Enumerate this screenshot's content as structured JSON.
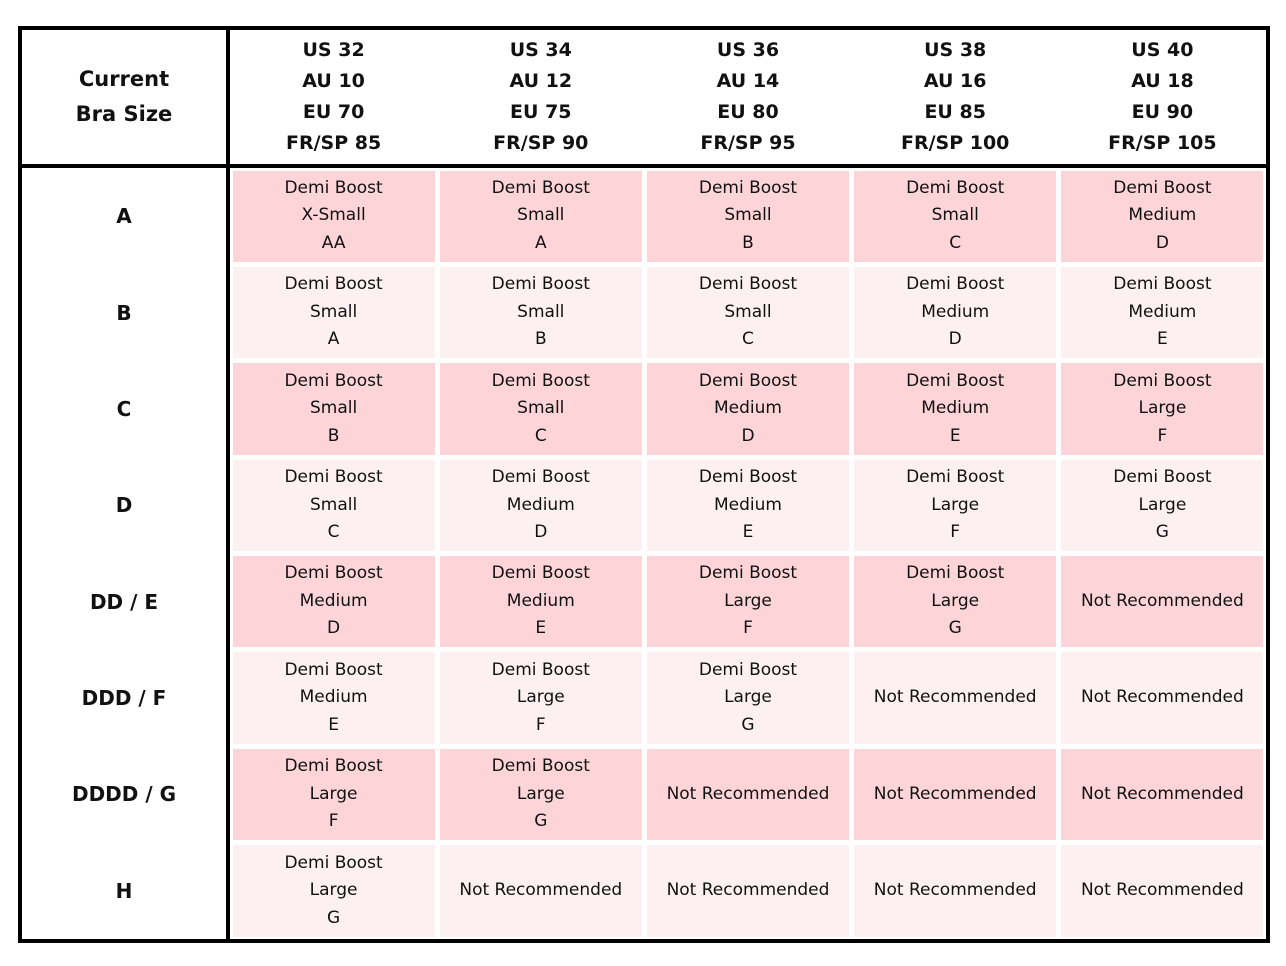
{
  "corner": [
    "Current",
    "Bra Size"
  ],
  "columns": [
    [
      "US 32",
      "AU 10",
      "EU 70",
      "FR/SP 85"
    ],
    [
      "US 34",
      "AU 12",
      "EU 75",
      "FR/SP 90"
    ],
    [
      "US 36",
      "AU 14",
      "EU 80",
      "FR/SP 95"
    ],
    [
      "US 38",
      "AU 16",
      "EU 85",
      "FR/SP 100"
    ],
    [
      "US 40",
      "AU 18",
      "EU 90",
      "FR/SP 105"
    ]
  ],
  "rows": [
    {
      "label": "A",
      "cells": [
        [
          "Demi Boost",
          "X-Small",
          "AA"
        ],
        [
          "Demi Boost",
          "Small",
          "A"
        ],
        [
          "Demi Boost",
          "Small",
          "B"
        ],
        [
          "Demi Boost",
          "Small",
          "C"
        ],
        [
          "Demi Boost",
          "Medium",
          "D"
        ]
      ]
    },
    {
      "label": "B",
      "cells": [
        [
          "Demi Boost",
          "Small",
          "A"
        ],
        [
          "Demi Boost",
          "Small",
          "B"
        ],
        [
          "Demi Boost",
          "Small",
          "C"
        ],
        [
          "Demi Boost",
          "Medium",
          "D"
        ],
        [
          "Demi Boost",
          "Medium",
          "E"
        ]
      ]
    },
    {
      "label": "C",
      "cells": [
        [
          "Demi Boost",
          "Small",
          "B"
        ],
        [
          "Demi Boost",
          "Small",
          "C"
        ],
        [
          "Demi Boost",
          "Medium",
          "D"
        ],
        [
          "Demi Boost",
          "Medium",
          "E"
        ],
        [
          "Demi Boost",
          "Large",
          "F"
        ]
      ]
    },
    {
      "label": "D",
      "cells": [
        [
          "Demi Boost",
          "Small",
          "C"
        ],
        [
          "Demi Boost",
          "Medium",
          "D"
        ],
        [
          "Demi Boost",
          "Medium",
          "E"
        ],
        [
          "Demi Boost",
          "Large",
          "F"
        ],
        [
          "Demi Boost",
          "Large",
          "G"
        ]
      ]
    },
    {
      "label": "DD / E",
      "cells": [
        [
          "Demi Boost",
          "Medium",
          "D"
        ],
        [
          "Demi Boost",
          "Medium",
          "E"
        ],
        [
          "Demi Boost",
          "Large",
          "F"
        ],
        [
          "Demi Boost",
          "Large",
          "G"
        ],
        [
          "Not Recommended"
        ]
      ]
    },
    {
      "label": "DDD / F",
      "cells": [
        [
          "Demi Boost",
          "Medium",
          "E"
        ],
        [
          "Demi Boost",
          "Large",
          "F"
        ],
        [
          "Demi Boost",
          "Large",
          "G"
        ],
        [
          "Not Recommended"
        ],
        [
          "Not Recommended"
        ]
      ]
    },
    {
      "label": "DDDD / G",
      "cells": [
        [
          "Demi Boost",
          "Large",
          "F"
        ],
        [
          "Demi Boost",
          "Large",
          "G"
        ],
        [
          "Not Recommended"
        ],
        [
          "Not Recommended"
        ],
        [
          "Not Recommended"
        ]
      ]
    },
    {
      "label": "H",
      "cells": [
        [
          "Demi Boost",
          "Large",
          "G"
        ],
        [
          "Not Recommended"
        ],
        [
          "Not Recommended"
        ],
        [
          "Not Recommended"
        ],
        [
          "Not Recommended"
        ]
      ]
    }
  ]
}
